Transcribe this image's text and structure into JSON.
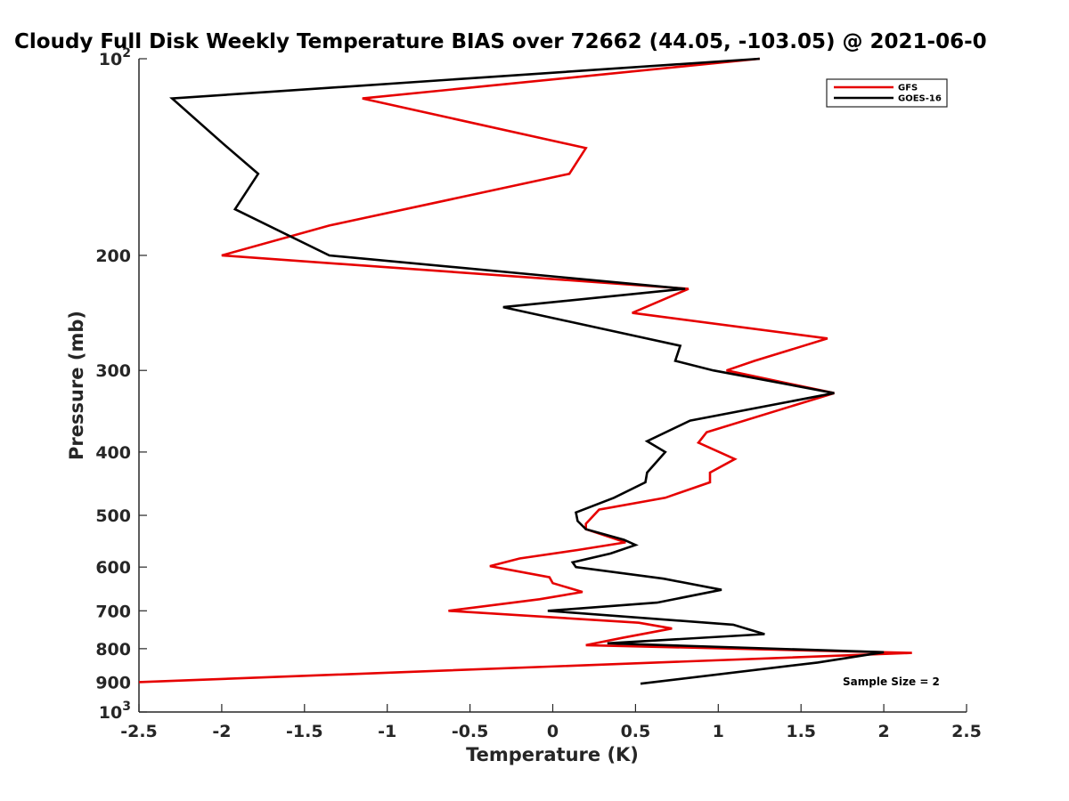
{
  "chart_data": {
    "type": "line",
    "title": "Cloudy Full Disk Weekly Temperature BIAS over 72662 (44.05, -103.05) @ 2021-06-0",
    "xlabel": "Temperature (K)",
    "ylabel": "Pressure (mb)",
    "xlim": [
      -2.5,
      2.5
    ],
    "ylim": [
      100,
      1000
    ],
    "yscale": "log",
    "y_reversed": true,
    "x_ticks": [
      -2.5,
      -2,
      -1.5,
      -1,
      -0.5,
      0,
      0.5,
      1,
      1.5,
      2,
      2.5
    ],
    "x_tick_labels": [
      "-2.5",
      "-2",
      "-1.5",
      "-1",
      "-0.5",
      "0",
      "0.5",
      "1",
      "1.5",
      "2",
      "2.5"
    ],
    "y_ticks": [
      {
        "value": 100,
        "base": "10",
        "exponent": "2"
      },
      {
        "value": 200,
        "label": "200"
      },
      {
        "value": 300,
        "label": "300"
      },
      {
        "value": 400,
        "label": "400"
      },
      {
        "value": 500,
        "label": "500"
      },
      {
        "value": 600,
        "label": "600"
      },
      {
        "value": 700,
        "label": "700"
      },
      {
        "value": 800,
        "label": "800"
      },
      {
        "value": 900,
        "label": "900"
      },
      {
        "value": 1000,
        "base": "10",
        "exponent": "3"
      }
    ],
    "grid": false,
    "legend_position": "top-right",
    "annotation": "Sample Size = 2",
    "series": [
      {
        "name": "GFS",
        "color": "#e60000",
        "points": [
          [
            1.25,
            100
          ],
          [
            -1.15,
            115
          ],
          [
            0.2,
            137
          ],
          [
            0.1,
            150
          ],
          [
            -1.35,
            180
          ],
          [
            -2.0,
            200
          ],
          [
            0.82,
            225
          ],
          [
            0.48,
            245
          ],
          [
            1.66,
            268
          ],
          [
            1.22,
            290
          ],
          [
            1.05,
            300
          ],
          [
            1.7,
            325
          ],
          [
            0.93,
            373
          ],
          [
            0.88,
            387
          ],
          [
            1.1,
            410
          ],
          [
            0.95,
            430
          ],
          [
            0.95,
            445
          ],
          [
            0.68,
            470
          ],
          [
            0.28,
            490
          ],
          [
            0.2,
            515
          ],
          [
            0.2,
            525
          ],
          [
            0.44,
            550
          ],
          [
            0.15,
            565
          ],
          [
            -0.2,
            582
          ],
          [
            -0.38,
            598
          ],
          [
            -0.02,
            622
          ],
          [
            0.0,
            635
          ],
          [
            0.18,
            655
          ],
          [
            -0.08,
            672
          ],
          [
            -0.63,
            700
          ],
          [
            0.52,
            730
          ],
          [
            0.72,
            745
          ],
          [
            0.42,
            770
          ],
          [
            0.2,
            790
          ],
          [
            2.17,
            812
          ],
          [
            -2.5,
            900
          ]
        ]
      },
      {
        "name": "GOES-16",
        "color": "#000000",
        "points": [
          [
            1.25,
            100
          ],
          [
            -2.3,
            115
          ],
          [
            -1.99,
            135
          ],
          [
            -1.78,
            150
          ],
          [
            -1.92,
            170
          ],
          [
            -1.35,
            200
          ],
          [
            0.8,
            225
          ],
          [
            -0.3,
            240
          ],
          [
            0.77,
            275
          ],
          [
            0.74,
            290
          ],
          [
            0.97,
            300
          ],
          [
            1.7,
            325
          ],
          [
            0.83,
            358
          ],
          [
            0.57,
            385
          ],
          [
            0.68,
            400
          ],
          [
            0.57,
            430
          ],
          [
            0.56,
            445
          ],
          [
            0.37,
            470
          ],
          [
            0.14,
            495
          ],
          [
            0.15,
            510
          ],
          [
            0.2,
            525
          ],
          [
            0.43,
            545
          ],
          [
            0.5,
            555
          ],
          [
            0.35,
            572
          ],
          [
            0.12,
            590
          ],
          [
            0.14,
            600
          ],
          [
            0.67,
            625
          ],
          [
            1.02,
            650
          ],
          [
            0.63,
            680
          ],
          [
            -0.03,
            700
          ],
          [
            1.09,
            735
          ],
          [
            1.28,
            760
          ],
          [
            0.33,
            785
          ],
          [
            2.0,
            810
          ],
          [
            1.6,
            840
          ],
          [
            0.53,
            905
          ]
        ]
      }
    ]
  }
}
